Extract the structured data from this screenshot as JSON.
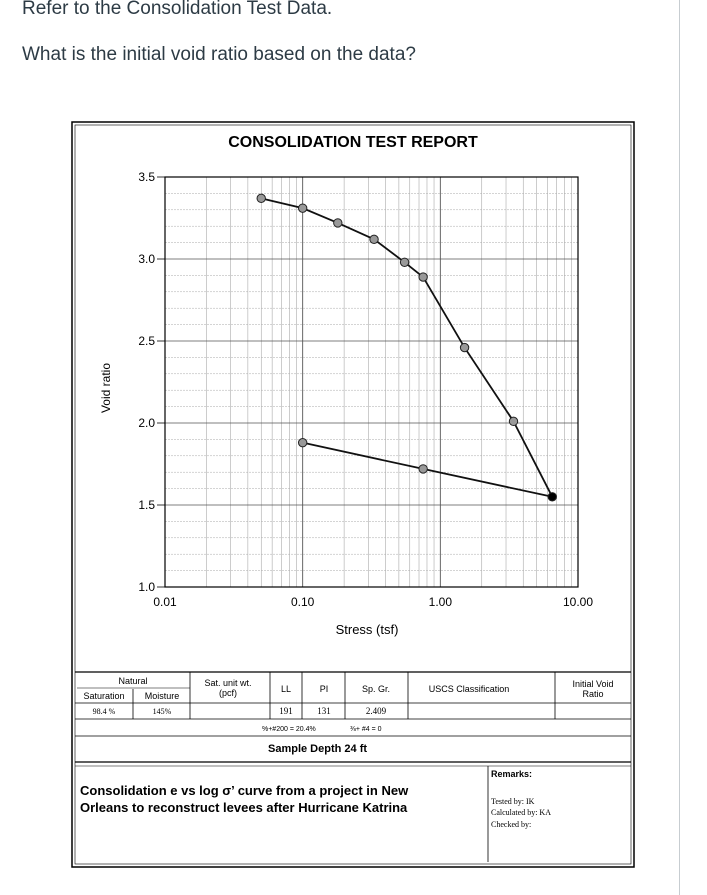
{
  "question": {
    "line1": "Refer to the Consolidation Test Data.",
    "line2": "What is the initial void ratio based on the data?"
  },
  "chart_data": {
    "type": "line",
    "title": "CONSOLIDATION TEST REPORT",
    "xlabel": "Stress (tsf)",
    "ylabel": "Void ratio",
    "x_scale": "log",
    "xlim": [
      0.01,
      10
    ],
    "ylim": [
      1.0,
      3.5
    ],
    "x_ticks": [
      "0.01",
      "0.10",
      "1.00",
      "10.00"
    ],
    "y_ticks": [
      "1.0",
      "1.5",
      "2.0",
      "2.5",
      "3.0",
      "3.5"
    ],
    "grid": true,
    "series": [
      {
        "segment": "loading",
        "x": [
          0.05,
          0.1,
          0.18,
          0.33,
          0.55,
          0.75,
          1.5,
          3.4,
          6.5
        ],
        "y": [
          3.37,
          3.31,
          3.22,
          3.12,
          2.98,
          2.89,
          2.46,
          2.01,
          1.55
        ]
      },
      {
        "segment": "unloading",
        "x": [
          6.5,
          0.75,
          0.1
        ],
        "y": [
          1.55,
          1.72,
          1.88
        ]
      }
    ]
  },
  "table": {
    "natural_header": "Natural",
    "saturation_label": "Saturation",
    "moisture_label": "Moisture",
    "saturation_value": "98.4 %",
    "moisture_value": "145%",
    "sat_unit_wt_label": "Sat. unit wt.",
    "sat_unit_wt_unit": "(pcf)",
    "ll_label": "LL",
    "pi_label": "PI",
    "sp_gr_label": "Sp. Gr.",
    "uscs_label": "USCS Classification",
    "initial_void_label_1": "Initial Void",
    "initial_void_label_2": "Ratio",
    "ll_value": "191",
    "pi_value": "131",
    "sp_gr_value": "2.409",
    "fines_text": "%+#200 = 20.4%",
    "sieve_text": "⅜+ #4 = 0",
    "sample_depth": "Sample Depth 24 ft"
  },
  "caption": {
    "line1": "Consolidation e vs log σ’ curve from a project in New",
    "line2": "Orleans to reconstruct levees after Hurricane Katrina"
  },
  "remarks": {
    "label": "Remarks:",
    "tested_by": "Tested by: IK",
    "calculated_by": "Calculated by: KA",
    "checked_by": "Checked by:"
  }
}
